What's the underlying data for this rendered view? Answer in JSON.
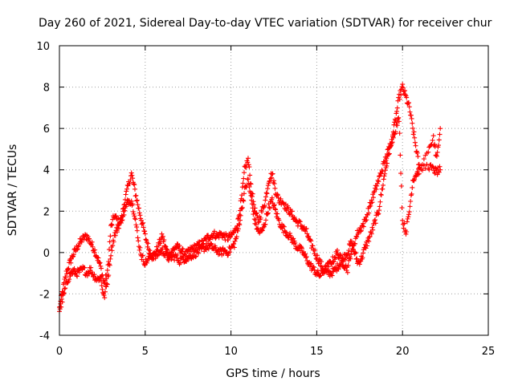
{
  "chart_data": {
    "type": "scatter",
    "title": "Day 260 of 2021, Sidereal Day-to-day VTEC variation (SDTVAR) for receiver chur",
    "xlabel": "GPS time / hours",
    "ylabel": "SDTVAR / TECUs",
    "xlim": [
      0,
      25
    ],
    "ylim": [
      -4,
      10
    ],
    "xticks": [
      "0",
      "5",
      "10",
      "15",
      "20",
      "25"
    ],
    "yticks": [
      "-4",
      "-2",
      "0",
      "2",
      "4",
      "6",
      "8",
      "10"
    ],
    "grid": true,
    "marker": "+",
    "color": "#ff0000",
    "series": [
      {
        "name": "SDTVAR",
        "x": [
          0.0,
          0.2,
          0.4,
          0.6,
          0.8,
          1.0,
          1.2,
          1.4,
          1.6,
          1.8,
          2.0,
          2.2,
          2.4,
          2.6,
          2.8,
          3.0,
          3.2,
          3.4,
          3.6,
          3.8,
          4.0,
          4.2,
          4.4,
          4.6,
          4.8,
          5.0,
          5.2,
          5.4,
          5.6,
          5.8,
          6.0,
          6.2,
          6.4,
          6.6,
          6.8,
          7.0,
          7.2,
          7.4,
          7.6,
          7.8,
          8.0,
          8.2,
          8.4,
          8.6,
          8.8,
          9.0,
          9.2,
          9.4,
          9.6,
          9.8,
          10.0,
          10.2,
          10.4,
          10.6,
          10.8,
          11.0,
          11.2,
          11.4,
          11.6,
          11.8,
          12.0,
          12.2,
          12.4,
          12.6,
          12.8,
          13.0,
          13.2,
          13.4,
          13.6,
          13.8,
          14.0,
          14.2,
          14.4,
          14.6,
          14.8,
          15.0,
          15.2,
          15.4,
          15.6,
          15.8,
          16.0,
          16.2,
          16.4,
          16.6,
          16.8,
          17.0,
          17.2,
          17.4,
          17.6,
          17.8,
          18.0,
          18.2,
          18.4,
          18.6,
          18.8,
          19.0,
          19.2,
          19.4,
          19.6,
          19.8,
          20.0,
          20.2,
          20.4,
          20.6,
          20.8,
          21.0,
          21.5,
          21.8,
          22.0,
          22.2
        ],
        "y": [
          -2.7,
          -1.8,
          -1.0,
          -0.5,
          -0.1,
          0.2,
          0.5,
          0.7,
          0.8,
          0.5,
          0.2,
          -0.2,
          -0.7,
          -1.5,
          -1.0,
          1.2,
          1.8,
          1.5,
          1.5,
          2.5,
          3.2,
          3.8,
          3.0,
          2.2,
          1.5,
          0.8,
          0.2,
          -0.2,
          0.0,
          0.4,
          0.8,
          0.2,
          -0.1,
          0.1,
          0.3,
          0.2,
          0.0,
          -0.1,
          0.1,
          0.2,
          0.3,
          0.4,
          0.5,
          0.7,
          0.8,
          0.9,
          0.8,
          0.9,
          0.8,
          0.7,
          0.8,
          1.0,
          1.5,
          2.5,
          4.0,
          4.5,
          3.0,
          2.0,
          1.5,
          2.0,
          2.5,
          3.5,
          3.8,
          3.0,
          2.5,
          2.5,
          2.2,
          2.0,
          1.8,
          1.5,
          1.4,
          1.2,
          1.0,
          0.5,
          0.2,
          -0.2,
          -0.5,
          -0.8,
          -1.0,
          -1.0,
          -0.9,
          -0.7,
          -0.5,
          -0.2,
          0.0,
          0.5,
          0.0,
          -0.5,
          -0.3,
          0.2,
          0.6,
          1.0,
          1.5,
          2.0,
          3.0,
          4.0,
          4.8,
          5.5,
          6.5,
          7.5,
          8.0,
          7.5,
          7.0,
          6.0,
          5.0,
          4.0,
          5.0,
          5.5,
          4.5,
          6.0
        ],
        "y2": [
          -2.8,
          -2.2,
          -1.5,
          -1.1,
          -0.9,
          -1.0,
          -0.9,
          -0.8,
          -1.0,
          -0.8,
          -1.1,
          -1.3,
          -1.2,
          -2.2,
          -1.4,
          0.0,
          0.8,
          1.2,
          1.6,
          2.0,
          2.5,
          2.5,
          1.8,
          0.5,
          -0.2,
          -0.5,
          -0.3,
          -0.1,
          -0.2,
          0.0,
          0.1,
          -0.1,
          -0.3,
          -0.2,
          -0.2,
          -0.4,
          -0.3,
          -0.3,
          -0.2,
          -0.1,
          0.0,
          0.1,
          0.2,
          0.3,
          0.3,
          0.2,
          0.1,
          0.0,
          0.1,
          0.0,
          0.2,
          0.4,
          1.0,
          2.0,
          3.0,
          3.5,
          2.5,
          1.5,
          1.0,
          1.0,
          1.5,
          2.2,
          2.5,
          2.0,
          1.5,
          1.2,
          1.0,
          0.8,
          0.6,
          0.3,
          0.2,
          0.0,
          -0.3,
          -0.6,
          -0.8,
          -1.0,
          -1.1,
          -0.9,
          -0.7,
          -0.5,
          -0.3,
          0.0,
          -0.3,
          -0.6,
          -0.8,
          0.0,
          0.5,
          1.0,
          1.2,
          1.5,
          2.0,
          2.5,
          3.0,
          3.5,
          4.0,
          4.5,
          5.0,
          5.5,
          6.0,
          6.5,
          1.5,
          1.0,
          2.0,
          3.5,
          3.8,
          4.0,
          4.2,
          4.0,
          3.9,
          4.0
        ]
      }
    ]
  }
}
